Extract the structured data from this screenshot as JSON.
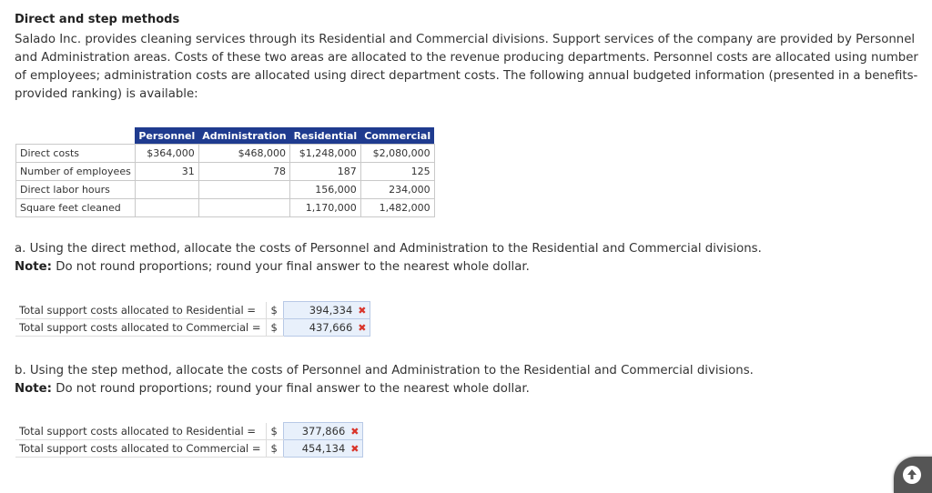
{
  "title": "Direct and step methods",
  "intro": "Salado Inc. provides cleaning services through its Residential and Commercial divisions. Support services of the company are provided by Personnel and Administration areas. Costs of these two areas are allocated to the revenue producing departments. Personnel costs are allocated using number of employees; administration costs are allocated using direct department costs. The following annual budgeted information (presented in a benefits-provided ranking) is available:",
  "table": {
    "headers": [
      "Personnel",
      "Administration",
      "Residential",
      "Commercial"
    ],
    "rows": [
      {
        "label": "Direct costs",
        "cells": [
          "$364,000",
          "$468,000",
          "$1,248,000",
          "$2,080,000"
        ]
      },
      {
        "label": "Number of employees",
        "cells": [
          "31",
          "78",
          "187",
          "125"
        ]
      },
      {
        "label": "Direct labor hours",
        "cells": [
          "",
          "",
          "156,000",
          "234,000"
        ]
      },
      {
        "label": "Square feet cleaned",
        "cells": [
          "",
          "",
          "1,170,000",
          "1,482,000"
        ]
      }
    ]
  },
  "part_a": {
    "question": "a. Using the direct method, allocate the costs of Personnel and Administration to the Residential and Commercial divisions.",
    "note_label": "Note:",
    "note": "Do not round proportions; round your final answer to the nearest whole dollar.",
    "rows": [
      {
        "label": "Total support costs allocated to Residential =",
        "currency": "$",
        "value": "394,334",
        "mark": "✖"
      },
      {
        "label": "Total support costs allocated to Commercial =",
        "currency": "$",
        "value": "437,666",
        "mark": "✖"
      }
    ]
  },
  "part_b": {
    "question": "b. Using the step method, allocate the costs of Personnel and Administration to the Residential and Commercial divisions.",
    "note_label": "Note:",
    "note": "Do not round proportions; round your final answer to the nearest whole dollar.",
    "rows": [
      {
        "label": "Total support costs allocated to Residential =",
        "currency": "$",
        "value": "377,866",
        "mark": "✖"
      },
      {
        "label": "Total support costs allocated to Commercial =",
        "currency": "$",
        "value": "454,134",
        "mark": "✖"
      }
    ]
  },
  "icons": {
    "scroll_top": "arrow-up-icon"
  },
  "colors": {
    "header_bg": "#1f3b8f",
    "answer_bg": "#e8f0fb",
    "wrong_mark": "#d9352b"
  }
}
